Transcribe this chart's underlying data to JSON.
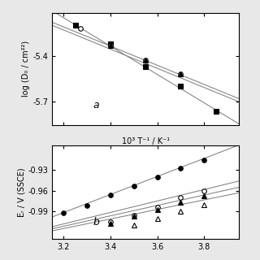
{
  "panel_a": {
    "label": "a",
    "xlabel": "10³ T⁻¹ / K⁻¹",
    "ylabel": "log (D₀ / cm²²)",
    "xlim": [
      3.15,
      3.95
    ],
    "ylim": [
      -5.85,
      -5.12
    ],
    "xticks": [
      3.2,
      3.4,
      3.6,
      3.8
    ],
    "yticks": [
      -5.7,
      -5.4
    ],
    "series": [
      {
        "marker": "s",
        "filled": true,
        "x": [
          3.25,
          3.4,
          3.55,
          3.7,
          3.85
        ],
        "y": [
          -5.2,
          -5.32,
          -5.47,
          -5.6,
          -5.76
        ],
        "line_x": [
          3.15,
          3.95
        ],
        "line_y": [
          -5.105,
          -5.845
        ]
      },
      {
        "marker": "o",
        "filled": false,
        "x": [
          3.27,
          3.4,
          3.55,
          3.7
        ],
        "y": [
          -5.22,
          -5.33,
          -5.43,
          -5.52
        ],
        "line_x": [
          3.15,
          3.95
        ],
        "line_y": [
          -5.18,
          -5.68
        ]
      },
      {
        "marker": "^",
        "filled": true,
        "x": [
          3.4,
          3.55,
          3.7
        ],
        "y": [
          -5.33,
          -5.43,
          -5.52
        ],
        "line_x": [
          3.15,
          3.95
        ],
        "line_y": [
          -5.2,
          -5.7
        ]
      }
    ]
  },
  "panel_b": {
    "label": "b",
    "ylabel": "Eᵣ / V (SSCE)",
    "xlim": [
      3.15,
      3.95
    ],
    "ylim": [
      -1.03,
      -0.895
    ],
    "xticks": [
      3.2,
      3.4,
      3.6,
      3.8
    ],
    "yticks": [
      -0.99,
      -0.96,
      -0.93
    ],
    "series": [
      {
        "marker": "o",
        "filled": true,
        "x": [
          3.2,
          3.3,
          3.4,
          3.5,
          3.6,
          3.7,
          3.8
        ],
        "y": [
          -0.992,
          -0.982,
          -0.966,
          -0.953,
          -0.94,
          -0.928,
          -0.916
        ],
        "line_x": [
          3.15,
          3.95
        ],
        "line_y": [
          -0.998,
          -0.894
        ]
      },
      {
        "marker": "o",
        "filled": false,
        "x": [
          3.4,
          3.5,
          3.6,
          3.7,
          3.8
        ],
        "y": [
          -1.005,
          -0.995,
          -0.984,
          -0.97,
          -0.96
        ],
        "line_x": [
          3.15,
          3.95
        ],
        "line_y": [
          -1.012,
          -0.946
        ]
      },
      {
        "marker": "^",
        "filled": true,
        "x": [
          3.4,
          3.5,
          3.6,
          3.7,
          3.8
        ],
        "y": [
          -1.007,
          -0.997,
          -0.987,
          -0.977,
          -0.968
        ],
        "line_x": [
          3.15,
          3.95
        ],
        "line_y": [
          -1.015,
          -0.955
        ]
      },
      {
        "marker": "^",
        "filled": false,
        "x": [
          3.5,
          3.6,
          3.7,
          3.8
        ],
        "y": [
          -1.01,
          -1.0,
          -0.99,
          -0.98
        ],
        "line_x": [
          3.15,
          3.95
        ],
        "line_y": [
          -1.018,
          -0.963
        ]
      }
    ]
  },
  "bg_color": "white",
  "fig_color": "#e8e8e8"
}
